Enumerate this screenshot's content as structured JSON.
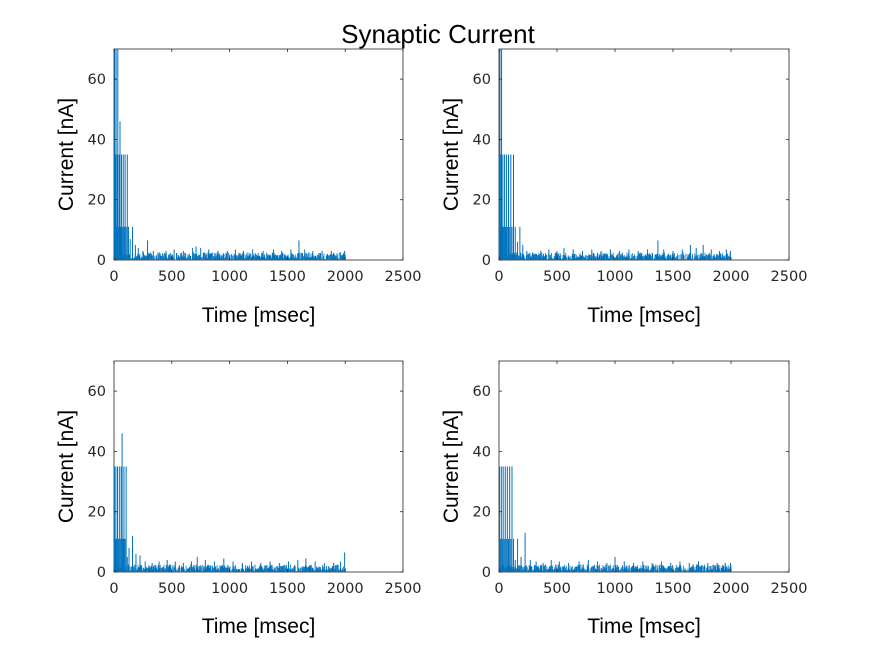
{
  "chart_data": {
    "type": "bar",
    "suptitle": "Synaptic Current",
    "series_color": "#0072BD",
    "panels": [
      {
        "id": "top-left",
        "xlabel": "Time [msec]",
        "ylabel": "Current [nA]",
        "xlim": [
          0,
          2500
        ],
        "ylim": [
          0,
          70
        ],
        "xticks": [
          0,
          500,
          1000,
          1500,
          2000,
          2500
        ],
        "yticks": [
          0,
          20,
          40,
          60
        ],
        "x_end": 2000,
        "baseline_max": 2.5,
        "peaks": [
          {
            "x": 3,
            "y": 35
          },
          {
            "x": 6,
            "y": 70
          },
          {
            "x": 9,
            "y": 11
          },
          {
            "x": 13,
            "y": 35
          },
          {
            "x": 18,
            "y": 70
          },
          {
            "x": 22,
            "y": 11
          },
          {
            "x": 28,
            "y": 35
          },
          {
            "x": 33,
            "y": 70
          },
          {
            "x": 38,
            "y": 11
          },
          {
            "x": 45,
            "y": 35
          },
          {
            "x": 52,
            "y": 46
          },
          {
            "x": 58,
            "y": 11
          },
          {
            "x": 65,
            "y": 35
          },
          {
            "x": 72,
            "y": 11
          },
          {
            "x": 80,
            "y": 35
          },
          {
            "x": 88,
            "y": 11
          },
          {
            "x": 96,
            "y": 35
          },
          {
            "x": 105,
            "y": 11
          },
          {
            "x": 115,
            "y": 35
          },
          {
            "x": 125,
            "y": 11
          },
          {
            "x": 140,
            "y": 7
          },
          {
            "x": 160,
            "y": 11
          },
          {
            "x": 185,
            "y": 5
          },
          {
            "x": 210,
            "y": 4
          },
          {
            "x": 250,
            "y": 3
          },
          {
            "x": 290,
            "y": 6.5
          },
          {
            "x": 340,
            "y": 3
          },
          {
            "x": 380,
            "y": 2.5
          },
          {
            "x": 450,
            "y": 3
          },
          {
            "x": 520,
            "y": 3.5
          },
          {
            "x": 600,
            "y": 3
          },
          {
            "x": 680,
            "y": 4
          },
          {
            "x": 710,
            "y": 4.5
          },
          {
            "x": 750,
            "y": 4
          },
          {
            "x": 820,
            "y": 3.5
          },
          {
            "x": 900,
            "y": 3
          },
          {
            "x": 980,
            "y": 3
          },
          {
            "x": 1050,
            "y": 3.5
          },
          {
            "x": 1120,
            "y": 3
          },
          {
            "x": 1200,
            "y": 3.5
          },
          {
            "x": 1290,
            "y": 3
          },
          {
            "x": 1380,
            "y": 3.5
          },
          {
            "x": 1450,
            "y": 3
          },
          {
            "x": 1530,
            "y": 3.5
          },
          {
            "x": 1600,
            "y": 6.5
          },
          {
            "x": 1650,
            "y": 3.5
          },
          {
            "x": 1720,
            "y": 3
          },
          {
            "x": 1800,
            "y": 3
          },
          {
            "x": 1880,
            "y": 3
          },
          {
            "x": 1960,
            "y": 2.5
          },
          {
            "x": 1995,
            "y": 3
          }
        ]
      },
      {
        "id": "top-right",
        "xlabel": "Time [msec]",
        "ylabel": "Current [nA]",
        "xlim": [
          0,
          2500
        ],
        "ylim": [
          0,
          70
        ],
        "xticks": [
          0,
          500,
          1000,
          1500,
          2000,
          2500
        ],
        "yticks": [
          0,
          20,
          40,
          60
        ],
        "x_end": 2000,
        "baseline_max": 2.5,
        "peaks": [
          {
            "x": 3,
            "y": 35
          },
          {
            "x": 8,
            "y": 70
          },
          {
            "x": 12,
            "y": 11
          },
          {
            "x": 17,
            "y": 35
          },
          {
            "x": 22,
            "y": 70
          },
          {
            "x": 27,
            "y": 11
          },
          {
            "x": 33,
            "y": 35
          },
          {
            "x": 40,
            "y": 11
          },
          {
            "x": 48,
            "y": 35
          },
          {
            "x": 56,
            "y": 11
          },
          {
            "x": 64,
            "y": 35
          },
          {
            "x": 72,
            "y": 11
          },
          {
            "x": 82,
            "y": 35
          },
          {
            "x": 92,
            "y": 11
          },
          {
            "x": 102,
            "y": 35
          },
          {
            "x": 112,
            "y": 11
          },
          {
            "x": 125,
            "y": 35
          },
          {
            "x": 140,
            "y": 11
          },
          {
            "x": 160,
            "y": 6
          },
          {
            "x": 180,
            "y": 11
          },
          {
            "x": 205,
            "y": 5
          },
          {
            "x": 240,
            "y": 3
          },
          {
            "x": 290,
            "y": 2.5
          },
          {
            "x": 360,
            "y": 3
          },
          {
            "x": 430,
            "y": 3.5
          },
          {
            "x": 500,
            "y": 3
          },
          {
            "x": 560,
            "y": 4
          },
          {
            "x": 640,
            "y": 3.5
          },
          {
            "x": 720,
            "y": 3
          },
          {
            "x": 800,
            "y": 3.5
          },
          {
            "x": 880,
            "y": 3
          },
          {
            "x": 960,
            "y": 3.5
          },
          {
            "x": 1040,
            "y": 3
          },
          {
            "x": 1120,
            "y": 3.5
          },
          {
            "x": 1200,
            "y": 3
          },
          {
            "x": 1280,
            "y": 3.5
          },
          {
            "x": 1370,
            "y": 6.5
          },
          {
            "x": 1420,
            "y": 3.5
          },
          {
            "x": 1500,
            "y": 3
          },
          {
            "x": 1580,
            "y": 3.5
          },
          {
            "x": 1650,
            "y": 5
          },
          {
            "x": 1700,
            "y": 4
          },
          {
            "x": 1760,
            "y": 5
          },
          {
            "x": 1830,
            "y": 3.5
          },
          {
            "x": 1900,
            "y": 3
          },
          {
            "x": 1960,
            "y": 3.5
          },
          {
            "x": 1995,
            "y": 3
          }
        ]
      },
      {
        "id": "bottom-left",
        "xlabel": "Time [msec]",
        "ylabel": "Current [nA]",
        "xlim": [
          0,
          2500
        ],
        "ylim": [
          0,
          70
        ],
        "xticks": [
          0,
          500,
          1000,
          1500,
          2000,
          2500
        ],
        "yticks": [
          0,
          20,
          40,
          60
        ],
        "x_end": 2000,
        "baseline_max": 2.5,
        "peaks": [
          {
            "x": 4,
            "y": 35
          },
          {
            "x": 10,
            "y": 11
          },
          {
            "x": 16,
            "y": 35
          },
          {
            "x": 23,
            "y": 11
          },
          {
            "x": 30,
            "y": 35
          },
          {
            "x": 38,
            "y": 11
          },
          {
            "x": 46,
            "y": 35
          },
          {
            "x": 54,
            "y": 11
          },
          {
            "x": 62,
            "y": 35
          },
          {
            "x": 70,
            "y": 46
          },
          {
            "x": 78,
            "y": 11
          },
          {
            "x": 86,
            "y": 35
          },
          {
            "x": 95,
            "y": 11
          },
          {
            "x": 105,
            "y": 35
          },
          {
            "x": 115,
            "y": 5
          },
          {
            "x": 130,
            "y": 8
          },
          {
            "x": 160,
            "y": 12
          },
          {
            "x": 190,
            "y": 6
          },
          {
            "x": 225,
            "y": 5.5
          },
          {
            "x": 270,
            "y": 3.5
          },
          {
            "x": 330,
            "y": 3
          },
          {
            "x": 390,
            "y": 3.5
          },
          {
            "x": 460,
            "y": 4
          },
          {
            "x": 530,
            "y": 3.5
          },
          {
            "x": 600,
            "y": 3
          },
          {
            "x": 670,
            "y": 3.5
          },
          {
            "x": 720,
            "y": 5
          },
          {
            "x": 790,
            "y": 4
          },
          {
            "x": 870,
            "y": 3.5
          },
          {
            "x": 950,
            "y": 4.5
          },
          {
            "x": 1030,
            "y": 3.5
          },
          {
            "x": 1110,
            "y": 3
          },
          {
            "x": 1190,
            "y": 3.5
          },
          {
            "x": 1270,
            "y": 3
          },
          {
            "x": 1350,
            "y": 3.5
          },
          {
            "x": 1430,
            "y": 3
          },
          {
            "x": 1510,
            "y": 3.5
          },
          {
            "x": 1590,
            "y": 4
          },
          {
            "x": 1660,
            "y": 4.5
          },
          {
            "x": 1740,
            "y": 3.5
          },
          {
            "x": 1820,
            "y": 3
          },
          {
            "x": 1900,
            "y": 3
          },
          {
            "x": 1960,
            "y": 3.5
          },
          {
            "x": 1995,
            "y": 6.5
          }
        ]
      },
      {
        "id": "bottom-right",
        "xlabel": "Time [msec]",
        "ylabel": "Current [nA]",
        "xlim": [
          0,
          2500
        ],
        "ylim": [
          0,
          70
        ],
        "xticks": [
          0,
          500,
          1000,
          1500,
          2000,
          2500
        ],
        "yticks": [
          0,
          20,
          40,
          60
        ],
        "x_end": 2000,
        "baseline_max": 2.5,
        "peaks": [
          {
            "x": 5,
            "y": 35
          },
          {
            "x": 12,
            "y": 11
          },
          {
            "x": 20,
            "y": 35
          },
          {
            "x": 28,
            "y": 11
          },
          {
            "x": 36,
            "y": 35
          },
          {
            "x": 45,
            "y": 11
          },
          {
            "x": 54,
            "y": 35
          },
          {
            "x": 63,
            "y": 11
          },
          {
            "x": 72,
            "y": 35
          },
          {
            "x": 82,
            "y": 11
          },
          {
            "x": 92,
            "y": 35
          },
          {
            "x": 102,
            "y": 11
          },
          {
            "x": 112,
            "y": 35
          },
          {
            "x": 125,
            "y": 11
          },
          {
            "x": 140,
            "y": 4
          },
          {
            "x": 160,
            "y": 11
          },
          {
            "x": 190,
            "y": 5
          },
          {
            "x": 225,
            "y": 13
          },
          {
            "x": 270,
            "y": 4
          },
          {
            "x": 320,
            "y": 3.5
          },
          {
            "x": 380,
            "y": 3
          },
          {
            "x": 450,
            "y": 4
          },
          {
            "x": 520,
            "y": 3.5
          },
          {
            "x": 600,
            "y": 3
          },
          {
            "x": 690,
            "y": 3.5
          },
          {
            "x": 770,
            "y": 4
          },
          {
            "x": 850,
            "y": 3.5
          },
          {
            "x": 930,
            "y": 3
          },
          {
            "x": 1000,
            "y": 5
          },
          {
            "x": 1080,
            "y": 3.5
          },
          {
            "x": 1160,
            "y": 3
          },
          {
            "x": 1240,
            "y": 3.5
          },
          {
            "x": 1320,
            "y": 3
          },
          {
            "x": 1400,
            "y": 3.5
          },
          {
            "x": 1480,
            "y": 3
          },
          {
            "x": 1560,
            "y": 3.5
          },
          {
            "x": 1640,
            "y": 3
          },
          {
            "x": 1720,
            "y": 3.5
          },
          {
            "x": 1800,
            "y": 3
          },
          {
            "x": 1880,
            "y": 3
          },
          {
            "x": 1950,
            "y": 3
          },
          {
            "x": 1995,
            "y": 3
          }
        ]
      }
    ]
  }
}
